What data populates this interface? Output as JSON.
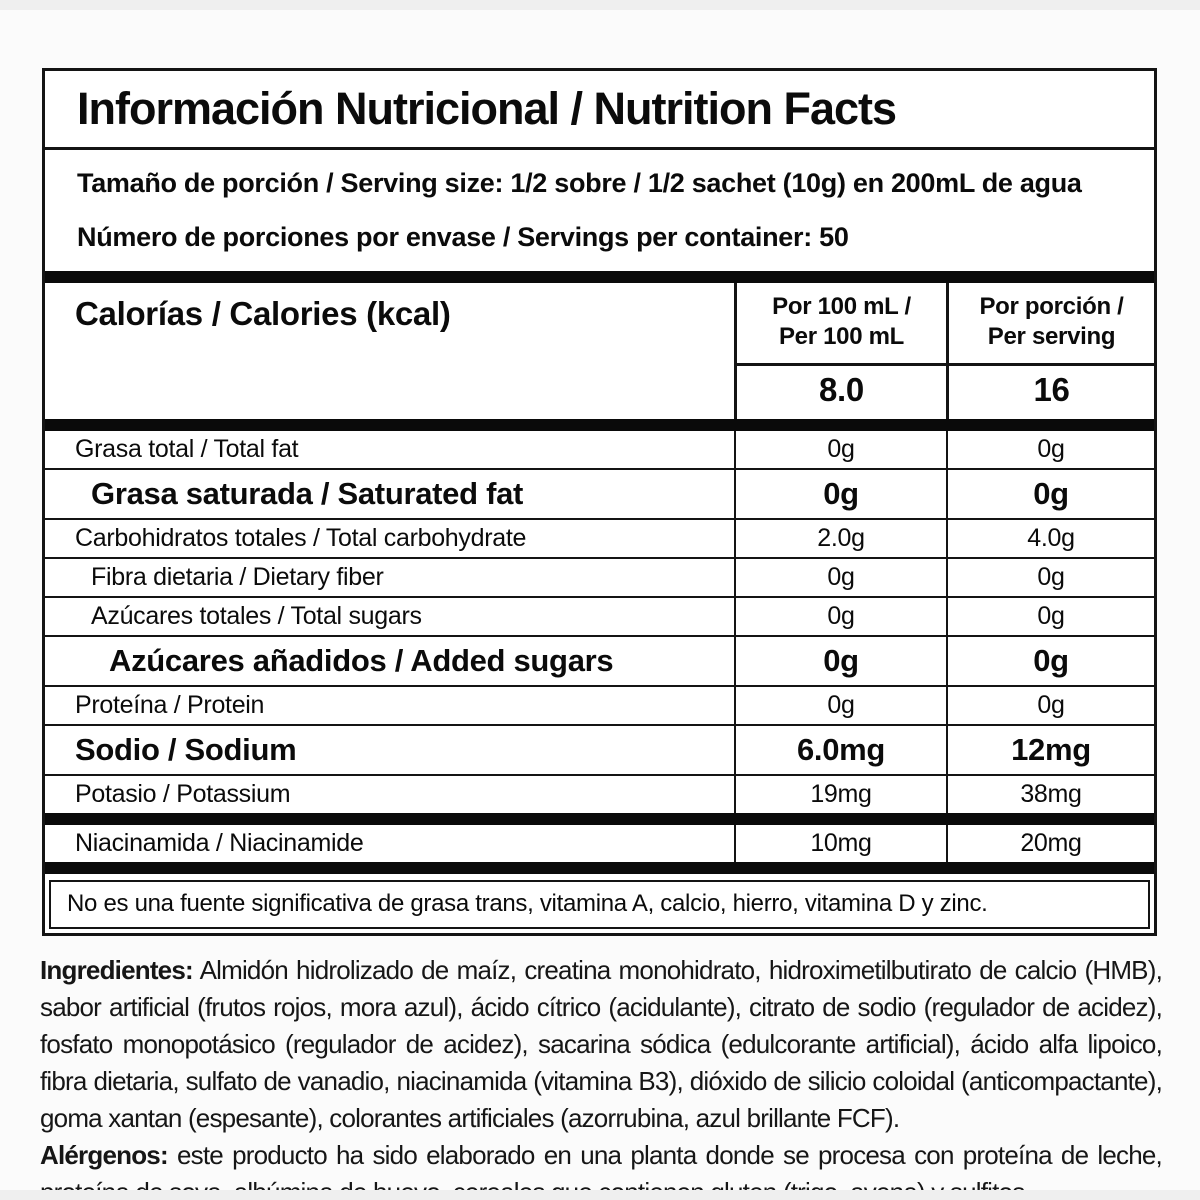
{
  "label": {
    "title": "Información Nutricional / Nutrition Facts",
    "serving_size": "Tamaño de porción / Serving size: 1/2 sobre / 1/2 sachet (10g) en 200mL de agua",
    "servings_per_container": "Número de porciones por envase / Servings per container: 50",
    "calories": {
      "name": "Calorías / Calories (kcal)",
      "col1_header_line1": "Por 100 mL /",
      "col1_header_line2": "Per 100 mL",
      "col2_header_line1": "Por porción /",
      "col2_header_line2": "Per serving",
      "per_100ml": "8.0",
      "per_serving": "16"
    },
    "rows": [
      {
        "name": "Grasa total / Total fat",
        "per_100ml": "0g",
        "per_serving": "0g"
      },
      {
        "name": "Grasa saturada / Saturated fat",
        "per_100ml": "0g",
        "per_serving": "0g"
      },
      {
        "name": "Carbohidratos totales / Total carbohydrate",
        "per_100ml": "2.0g",
        "per_serving": "4.0g"
      },
      {
        "name": "Fibra dietaria / Dietary fiber",
        "per_100ml": "0g",
        "per_serving": "0g"
      },
      {
        "name": "Azúcares totales / Total sugars",
        "per_100ml": "0g",
        "per_serving": "0g"
      },
      {
        "name": "Azúcares añadidos / Added sugars",
        "per_100ml": "0g",
        "per_serving": "0g"
      },
      {
        "name": "Proteína / Protein",
        "per_100ml": "0g",
        "per_serving": "0g"
      },
      {
        "name": "Sodio / Sodium",
        "per_100ml": "6.0mg",
        "per_serving": "12mg"
      },
      {
        "name": "Potasio / Potassium",
        "per_100ml": "19mg",
        "per_serving": "38mg"
      },
      {
        "name": "Niacinamida / Niacinamide",
        "per_100ml": "10mg",
        "per_serving": "20mg"
      }
    ],
    "footnote": "No es una fuente significativa de grasa trans, vitamina A, calcio, hierro, vitamina D y zinc."
  },
  "ingredients": {
    "label": "Ingredientes:",
    "text": "Almidón hidrolizado de maíz, creatina monohidrato, hidroximetilbutirato de calcio (HMB), sabor artificial (frutos rojos, mora azul), ácido cítrico (acidulante), citrato de sodio (regulador de acidez), fosfato monopotásico (regulador de acidez), sacarina sódica (edulcorante artificial), ácido alfa lipoico, fibra dietaria, sulfato de vanadio, niacinamida (vitamina B3), dióxido de silicio coloidal (anticompactante), goma xantan (espesante), colorantes artificiales (azorrubina, azul brillante FCF)."
  },
  "allergens": {
    "label": "Alérgenos:",
    "text": "este producto ha sido elaborado en una planta donde se procesa con proteína de leche, proteína de soya, albúmina de huevo, cereales que contienen gluten (trigo, avena) y sulfitos."
  },
  "colors": {
    "text": "#0b0b0b",
    "border": "#141414",
    "background": "#ffffff",
    "page_background": "#fbfbfb"
  }
}
